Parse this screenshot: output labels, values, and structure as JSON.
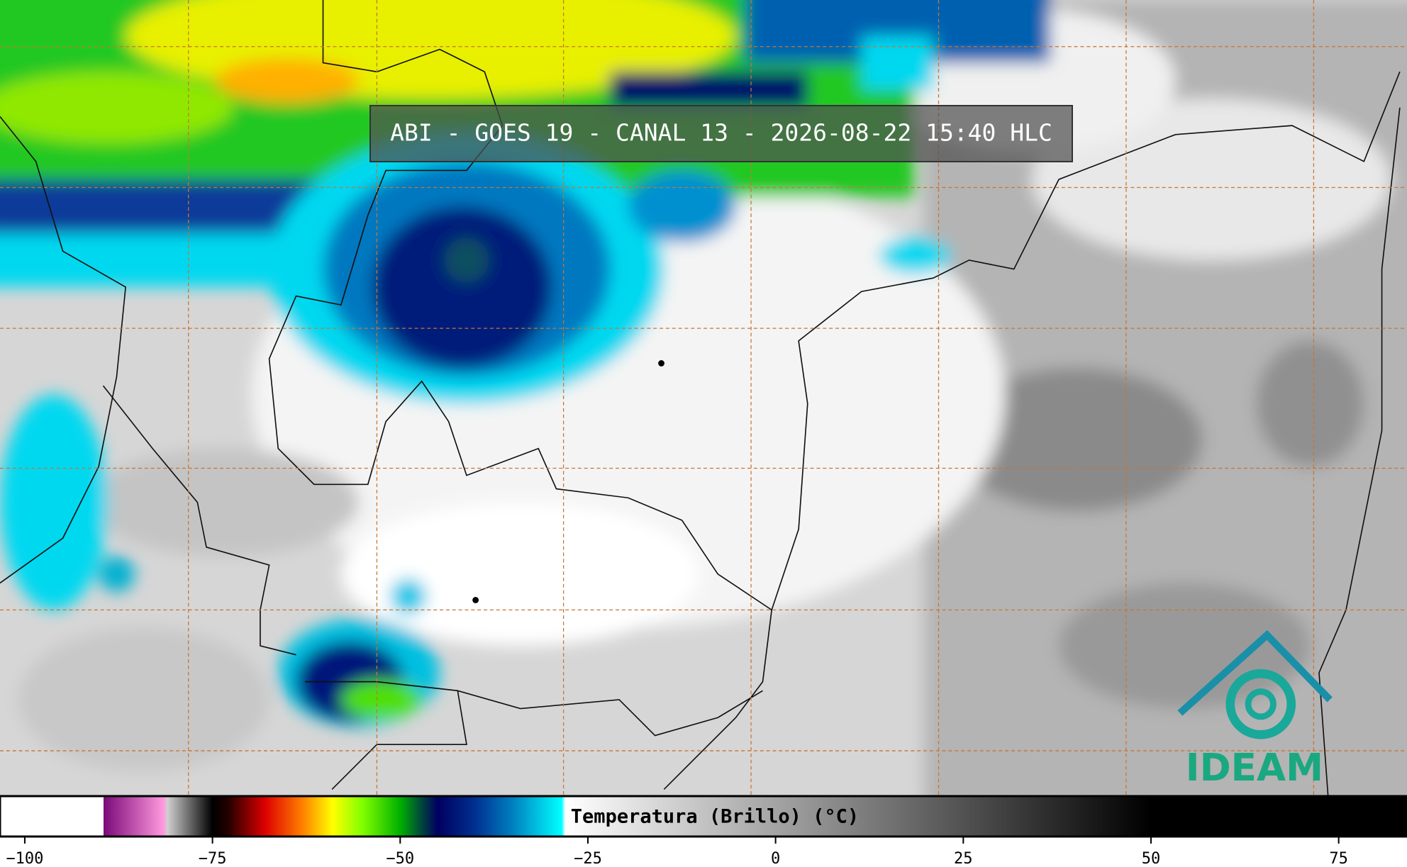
{
  "title": "ABI - GOES 19 - CANAL 13 - 2026-08-22 15:40 HLC",
  "logo": "IDEAM",
  "colorbar": {
    "label": "Temperatura (Brillo) (°C)",
    "xlim": [
      -103.3,
      84.1
    ],
    "xticks": [
      {
        "value": -100,
        "label": "−100"
      },
      {
        "value": -75,
        "label": "−75"
      },
      {
        "value": -50,
        "label": "−50"
      },
      {
        "value": -25,
        "label": "−25"
      },
      0,
      25,
      50,
      75
    ],
    "colormap": [
      {
        "value": -103.3,
        "color": "#ffffff"
      },
      {
        "value": -89.5,
        "color": "#ffffff"
      },
      {
        "value": -89.5,
        "color": "#7a0a7a"
      },
      {
        "value": -81.5,
        "color": "#ff99dd"
      },
      {
        "value": -81,
        "color": "#d0d0d0"
      },
      {
        "value": -75,
        "color": "#000000"
      },
      {
        "value": -73,
        "color": "#200000"
      },
      {
        "value": -68,
        "color": "#dd0000"
      },
      {
        "value": -63,
        "color": "#ff8000"
      },
      {
        "value": -59,
        "color": "#ffff00"
      },
      {
        "value": -55,
        "color": "#80ff00"
      },
      {
        "value": -50,
        "color": "#00b000"
      },
      {
        "value": -47,
        "color": "#004040"
      },
      {
        "value": -45,
        "color": "#000060"
      },
      {
        "value": -40,
        "color": "#003090"
      },
      {
        "value": -35,
        "color": "#0080c0"
      },
      {
        "value": -28.5,
        "color": "#00ffff"
      },
      {
        "value": -28,
        "color": "#ffffff"
      },
      {
        "value": 50,
        "color": "#000000"
      },
      {
        "value": 84.1,
        "color": "#000000"
      }
    ]
  }
}
